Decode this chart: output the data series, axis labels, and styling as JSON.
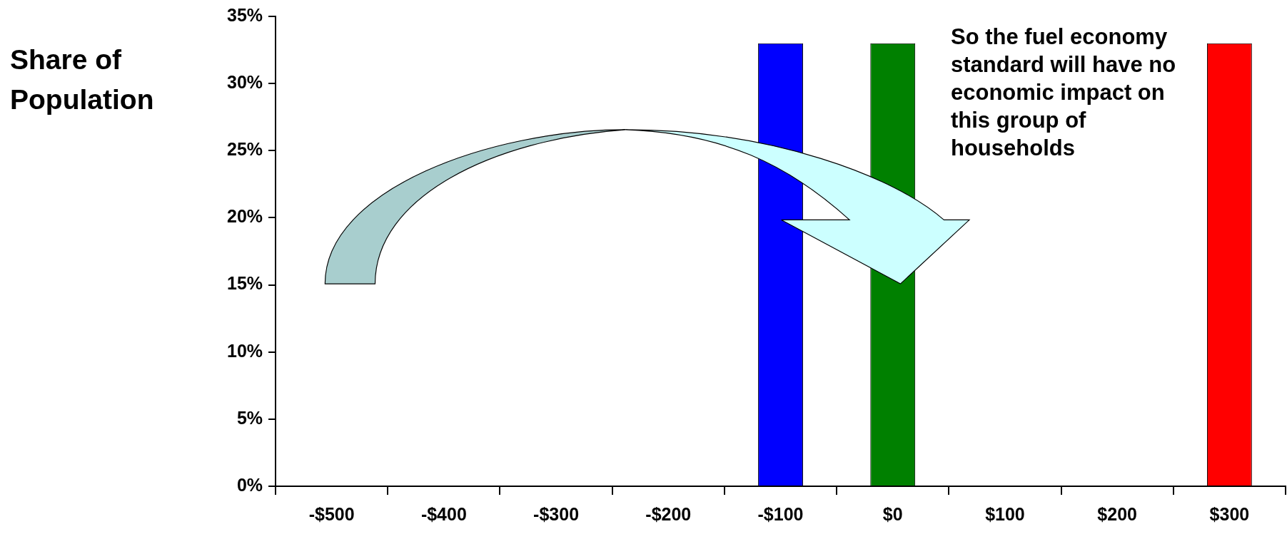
{
  "chart_data": {
    "type": "bar",
    "categories": [
      "-$500",
      "-$400",
      "-$300",
      "-$200",
      "-$100",
      "$0",
      "$100",
      "$200",
      "$300"
    ],
    "values": [
      null,
      null,
      null,
      null,
      33,
      33,
      null,
      null,
      33
    ],
    "colors": [
      "#0000ff",
      "#0000ff",
      "#0000ff",
      "#0000ff",
      "#0000ff",
      "#008000",
      "#ff0000",
      "#ff0000",
      "#ff0000"
    ],
    "ylabel": "Share of Population",
    "ylim": [
      0,
      35
    ],
    "yticks": [
      {
        "value": 0,
        "label": "0%"
      },
      {
        "value": 5,
        "label": "5%"
      },
      {
        "value": 10,
        "label": "10%"
      },
      {
        "value": 15,
        "label": "15%"
      },
      {
        "value": 20,
        "label": "20%"
      },
      {
        "value": 25,
        "label": "25%"
      },
      {
        "value": 30,
        "label": "30%"
      },
      {
        "value": 35,
        "label": "35%"
      }
    ],
    "annotations": [
      "So the fuel economy standard will have no economic impact on this group of households"
    ],
    "grid": false,
    "legend": false
  }
}
